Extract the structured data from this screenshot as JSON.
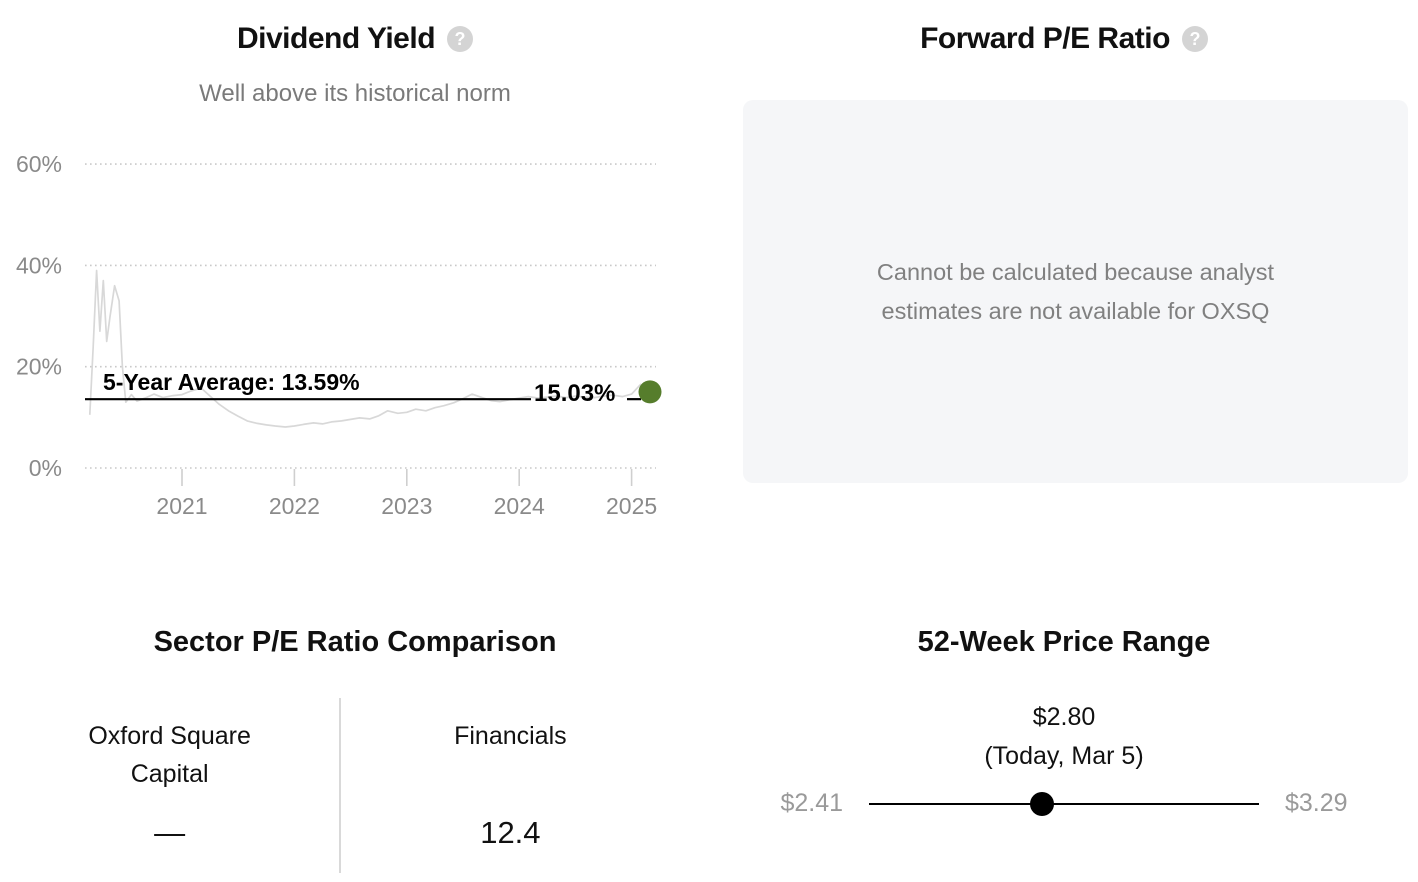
{
  "colors": {
    "accent_green": "#567d2c",
    "chart_line_gray": "#d8d8d8",
    "muted_text": "#8a8a8a",
    "box_bg": "#f5f6f8"
  },
  "panels": {
    "dividend_yield": {
      "title": "Dividend Yield",
      "help_icon": "?",
      "subtitle": "Well above its historical norm"
    },
    "forward_pe": {
      "title": "Forward P/E Ratio",
      "help_icon": "?",
      "message": "Cannot be calculated because analyst estimates are not available for OXSQ"
    },
    "sector_pe": {
      "title": "Sector P/E Ratio Comparison",
      "left_label": "Oxford Square Capital",
      "left_value": "—",
      "right_label": "Financials",
      "right_value": "12.4"
    },
    "price_range": {
      "title": "52-Week Price Range",
      "current_label": "$2.80",
      "current_sublabel": "(Today, Mar 5)",
      "low_label": "$2.41",
      "high_label": "$3.29",
      "low_value": 2.41,
      "high_value": 3.29,
      "current_value": 2.8
    }
  },
  "chart_data": {
    "type": "line",
    "title": "Dividend Yield",
    "subtitle": "Well above its historical norm",
    "xlabel": "",
    "ylabel": "",
    "ylim": [
      0,
      65
    ],
    "grid": "horizontal-dotted",
    "legend": "none",
    "yticks": [
      {
        "value": 0,
        "label": "0%"
      },
      {
        "value": 20,
        "label": "20%"
      },
      {
        "value": 40,
        "label": "40%"
      },
      {
        "value": 60,
        "label": "60%"
      }
    ],
    "xticks": [
      2021,
      2022,
      2023,
      2024,
      2025
    ],
    "average_value": 13.59,
    "average_label": "5-Year Average: 13.59%",
    "current_value": 15.03,
    "current_label": "15.03%",
    "current_dot_color": "#567d2c",
    "series": [
      {
        "name": "Dividend Yield",
        "points": [
          [
            2020.18,
            10.5
          ],
          [
            2020.21,
            24.0
          ],
          [
            2020.24,
            39.0
          ],
          [
            2020.27,
            27.0
          ],
          [
            2020.3,
            37.0
          ],
          [
            2020.33,
            25.0
          ],
          [
            2020.36,
            30.0
          ],
          [
            2020.4,
            36.0
          ],
          [
            2020.44,
            33.0
          ],
          [
            2020.47,
            20.0
          ],
          [
            2020.5,
            13.0
          ],
          [
            2020.55,
            14.5
          ],
          [
            2020.6,
            13.2
          ],
          [
            2020.67,
            13.8
          ],
          [
            2020.75,
            14.6
          ],
          [
            2020.83,
            13.9
          ],
          [
            2020.92,
            14.3
          ],
          [
            2021.0,
            14.5
          ],
          [
            2021.08,
            15.2
          ],
          [
            2021.17,
            15.8
          ],
          [
            2021.25,
            14.2
          ],
          [
            2021.33,
            12.6
          ],
          [
            2021.42,
            11.2
          ],
          [
            2021.5,
            10.2
          ],
          [
            2021.58,
            9.3
          ],
          [
            2021.67,
            8.8
          ],
          [
            2021.75,
            8.5
          ],
          [
            2021.83,
            8.3
          ],
          [
            2021.92,
            8.1
          ],
          [
            2022.0,
            8.3
          ],
          [
            2022.08,
            8.6
          ],
          [
            2022.17,
            8.9
          ],
          [
            2022.25,
            8.7
          ],
          [
            2022.33,
            9.1
          ],
          [
            2022.42,
            9.3
          ],
          [
            2022.5,
            9.6
          ],
          [
            2022.58,
            9.9
          ],
          [
            2022.67,
            9.7
          ],
          [
            2022.75,
            10.3
          ],
          [
            2022.83,
            11.3
          ],
          [
            2022.92,
            10.8
          ],
          [
            2023.0,
            11.0
          ],
          [
            2023.08,
            11.6
          ],
          [
            2023.17,
            11.3
          ],
          [
            2023.25,
            11.9
          ],
          [
            2023.33,
            12.3
          ],
          [
            2023.42,
            12.9
          ],
          [
            2023.5,
            13.7
          ],
          [
            2023.58,
            14.6
          ],
          [
            2023.67,
            13.9
          ],
          [
            2023.75,
            13.3
          ],
          [
            2023.83,
            13.1
          ],
          [
            2023.92,
            13.5
          ],
          [
            2024.0,
            13.8
          ],
          [
            2024.08,
            14.1
          ],
          [
            2024.17,
            13.8
          ],
          [
            2024.25,
            14.0
          ],
          [
            2024.33,
            14.2
          ],
          [
            2024.42,
            13.9
          ],
          [
            2024.5,
            14.2
          ],
          [
            2024.58,
            14.0
          ],
          [
            2024.67,
            13.9
          ],
          [
            2024.75,
            14.2
          ],
          [
            2024.83,
            14.4
          ],
          [
            2024.92,
            14.1
          ],
          [
            2025.0,
            14.6
          ],
          [
            2025.08,
            16.5
          ],
          [
            2025.17,
            15.03
          ]
        ]
      }
    ]
  }
}
